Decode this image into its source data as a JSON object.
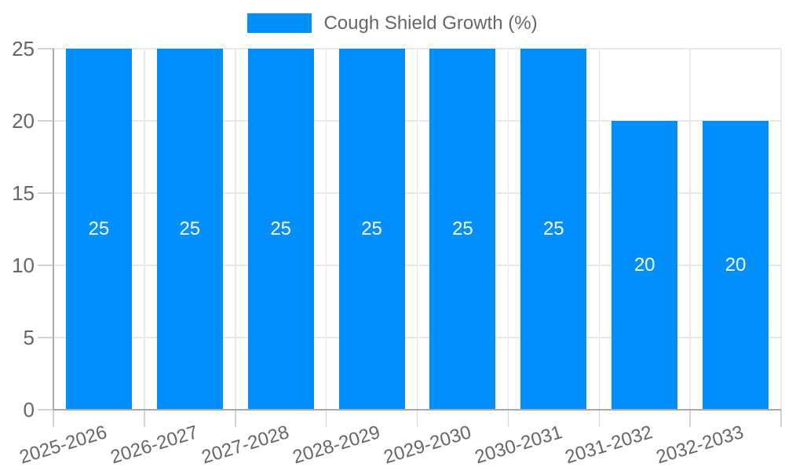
{
  "chart_data": {
    "type": "bar",
    "title": "",
    "legend": {
      "label": "Cough Shield Growth (%)",
      "position": "top"
    },
    "categories": [
      "2025-2026",
      "2026-2027",
      "2027-2028",
      "2028-2029",
      "2029-2030",
      "2030-2031",
      "2031-2032",
      "2032-2033"
    ],
    "series": [
      {
        "name": "Cough Shield Growth (%)",
        "values": [
          25,
          25,
          25,
          25,
          25,
          25,
          20,
          20
        ]
      }
    ],
    "ylim": [
      0,
      25
    ],
    "yticks": [
      0,
      5,
      10,
      15,
      20,
      25
    ],
    "grid": true,
    "x_label_rotation_deg": -17,
    "colors": {
      "bar": "#008FFB",
      "data_label": "#FFFFFF",
      "axis_text": "#666666",
      "grid_line": "#E8E8E8",
      "tick_line": "#D2D2D2",
      "axis_line": "#A9A9A9",
      "background": "#FFFFFF"
    }
  }
}
